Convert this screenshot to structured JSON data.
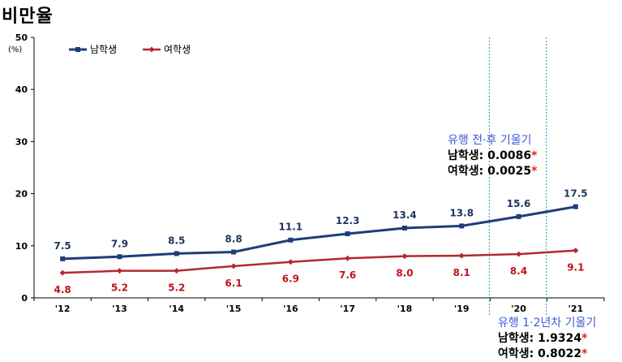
{
  "title": "비만율",
  "unit": "(%)",
  "colors": {
    "male": "#1f3d7a",
    "female": "#b22a2e"
  },
  "chart_data": {
    "type": "line",
    "title": "비만율",
    "ylabel": "(%)",
    "categories": [
      "'12",
      "'13",
      "'14",
      "'15",
      "'16",
      "'17",
      "'18",
      "'19",
      "'20",
      "'21"
    ],
    "ylim": [
      0,
      50
    ],
    "yticks": [
      0,
      10,
      20,
      30,
      40,
      50
    ],
    "legend": "top-left",
    "series": [
      {
        "name": "남학생",
        "values": [
          7.5,
          7.9,
          8.5,
          8.8,
          11.1,
          12.3,
          13.4,
          13.8,
          15.6,
          17.5
        ],
        "labels": [
          "7.5",
          "7.9",
          "8.5",
          "8.8",
          "11.1",
          "12.3",
          "13.4",
          "13.8",
          "15.6",
          "17.5"
        ]
      },
      {
        "name": "여학생",
        "values": [
          4.8,
          5.2,
          5.2,
          6.1,
          6.9,
          7.6,
          8.0,
          8.1,
          8.4,
          9.1
        ],
        "labels": [
          "4.8",
          "5.2",
          "5.2",
          "6.1",
          "6.9",
          "7.6",
          "8.0",
          "8.1",
          "8.4",
          "9.1"
        ]
      }
    ],
    "annotations": [
      {
        "heading": "유행 전·후 기울기",
        "lines": [
          {
            "label": "남학생: ",
            "value": "0.0086",
            "mark": "*"
          },
          {
            "label": "여학생: ",
            "value": "0.0025",
            "mark": "*"
          }
        ]
      },
      {
        "heading": "유행 1·2년차 기울기",
        "lines": [
          {
            "label": "남학생: ",
            "value": "1.9324",
            "mark": "*"
          },
          {
            "label": "여학생: ",
            "value": "0.8022",
            "mark": "*"
          }
        ]
      }
    ]
  }
}
